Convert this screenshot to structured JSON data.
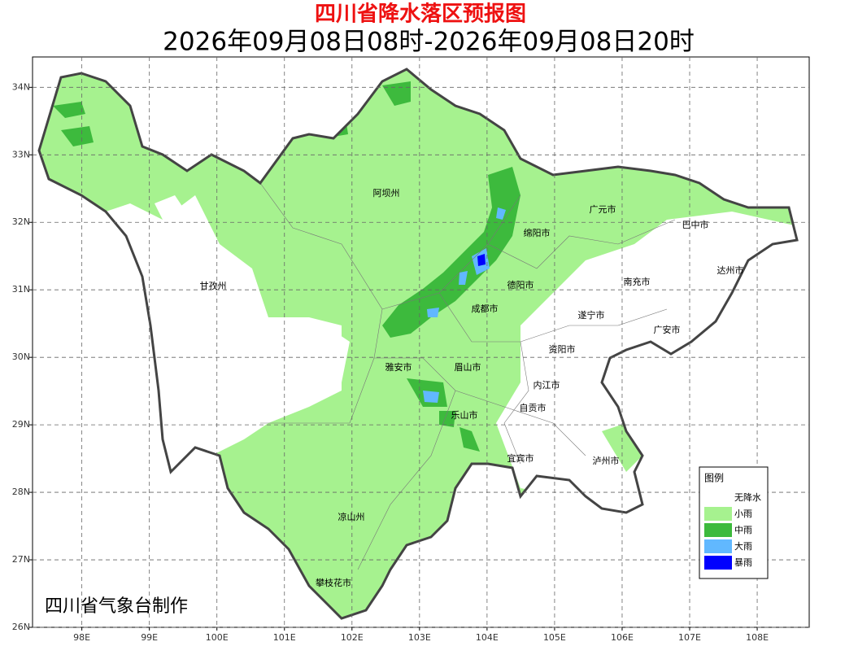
{
  "header": {
    "title": "四川省降水落区预报图",
    "subtitle": "2026年09月08日08时-2026年09月08日20时"
  },
  "axes": {
    "xlim": [
      97.27,
      108.77
    ],
    "ylim": [
      26,
      34.45
    ],
    "xticks": [
      {
        "value": 98,
        "label": "98E"
      },
      {
        "value": 99,
        "label": "99E"
      },
      {
        "value": 100,
        "label": "100E"
      },
      {
        "value": 101,
        "label": "101E"
      },
      {
        "value": 102,
        "label": "102E"
      },
      {
        "value": 103,
        "label": "103E"
      },
      {
        "value": 104,
        "label": "104E"
      },
      {
        "value": 105,
        "label": "105E"
      },
      {
        "value": 106,
        "label": "106E"
      },
      {
        "value": 107,
        "label": "107E"
      },
      {
        "value": 108,
        "label": "108E"
      }
    ],
    "yticks": [
      {
        "value": 26,
        "label": "26N"
      },
      {
        "value": 27,
        "label": "27N"
      },
      {
        "value": 28,
        "label": "28N"
      },
      {
        "value": 29,
        "label": "29N"
      },
      {
        "value": 30,
        "label": "30N"
      },
      {
        "value": 31,
        "label": "31N"
      },
      {
        "value": 32,
        "label": "32N"
      },
      {
        "value": 33,
        "label": "33N"
      },
      {
        "value": 34,
        "label": "34N"
      }
    ],
    "grid": true
  },
  "places": [
    "阿坝州",
    "广元市",
    "巴中市",
    "绵阳市",
    "达州市",
    "甘孜州",
    "德阳市",
    "南充市",
    "成都市",
    "遂宁市",
    "广安市",
    "资阳市",
    "雅安市",
    "眉山市",
    "内江市",
    "自贡市",
    "乐山市",
    "宜宾市",
    "泸州市",
    "凉山州",
    "攀枝花市"
  ],
  "legend": {
    "title": "图例",
    "items": [
      {
        "label": "无降水",
        "color": "#ffffff"
      },
      {
        "label": "小雨",
        "color": "#a6f28f"
      },
      {
        "label": "中雨",
        "color": "#3dba3d"
      },
      {
        "label": "大雨",
        "color": "#61b8ff"
      },
      {
        "label": "暴雨",
        "color": "#0000fe"
      }
    ]
  },
  "credit": "四川省气象台制作"
}
